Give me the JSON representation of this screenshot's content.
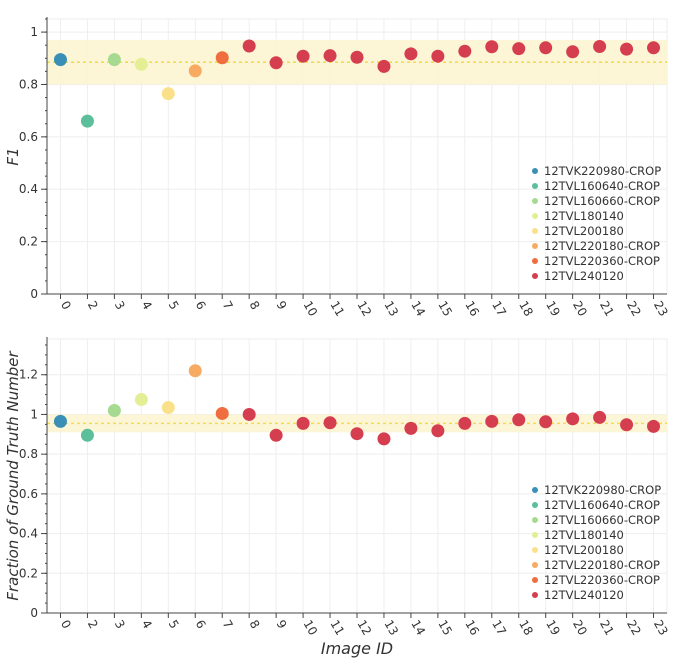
{
  "chart_data": [
    {
      "type": "scatter",
      "panel": "top",
      "xlabel": "",
      "ylabel": "F1",
      "ylim": [
        0,
        1.05
      ],
      "yticks": [
        0,
        0.2,
        0.4,
        0.6,
        0.8,
        1
      ],
      "ytick_labels": [
        "0",
        "0.2",
        "0.4",
        "0.6",
        "0.8",
        "1"
      ],
      "categories": [
        "0",
        "2",
        "3",
        "4",
        "5",
        "6",
        "7",
        "8",
        "9",
        "10",
        "11",
        "12",
        "13",
        "14",
        "15",
        "16",
        "17",
        "18",
        "19",
        "20",
        "21",
        "22",
        "23"
      ],
      "band": {
        "low": 0.8,
        "high": 0.97,
        "color": "#fdf5cf"
      },
      "mean_line": {
        "value": 0.885,
        "color": "#f5dc4a"
      },
      "series": [
        {
          "name": "12TVK220980-CROP",
          "color": "#3a8fb7",
          "x": [
            "0"
          ],
          "values": [
            0.895
          ]
        },
        {
          "name": "12TVL160640-CROP",
          "color": "#5cbf9c",
          "x": [
            "2"
          ],
          "values": [
            0.66
          ]
        },
        {
          "name": "12TVL160660-CROP",
          "color": "#a6da90",
          "x": [
            "3"
          ],
          "values": [
            0.895
          ]
        },
        {
          "name": "12TVL180140",
          "color": "#e4ef95",
          "x": [
            "4"
          ],
          "values": [
            0.877
          ]
        },
        {
          "name": "12TVL200180",
          "color": "#fbe08a",
          "x": [
            "5"
          ],
          "values": [
            0.765
          ]
        },
        {
          "name": "12TVL220180-CROP",
          "color": "#f7ab62",
          "x": [
            "6"
          ],
          "values": [
            0.852
          ]
        },
        {
          "name": "12TVL220360-CROP",
          "color": "#ef6d3e",
          "x": [
            "7"
          ],
          "values": [
            0.902
          ]
        },
        {
          "name": "12TVL240120",
          "color": "#d53e4f",
          "x": [
            "8",
            "9",
            "10",
            "11",
            "12",
            "13",
            "14",
            "15",
            "16",
            "17",
            "18",
            "19",
            "20",
            "21",
            "22",
            "23"
          ],
          "values": [
            0.947,
            0.883,
            0.908,
            0.91,
            0.904,
            0.869,
            0.917,
            0.908,
            0.927,
            0.944,
            0.937,
            0.94,
            0.925,
            0.945,
            0.935,
            0.94
          ]
        }
      ],
      "legend_position": "bottom-right"
    },
    {
      "type": "scatter",
      "panel": "bottom",
      "xlabel": "Image ID",
      "ylabel": "Fraction of Ground Truth Number",
      "ylim": [
        0,
        1.38
      ],
      "yticks": [
        0,
        0.2,
        0.4,
        0.6,
        0.8,
        1,
        1.2
      ],
      "ytick_labels": [
        "0",
        "0.2",
        "0.4",
        "0.6",
        "0.8",
        "1",
        "1.2"
      ],
      "categories": [
        "0",
        "2",
        "3",
        "4",
        "5",
        "6",
        "7",
        "8",
        "9",
        "10",
        "11",
        "12",
        "13",
        "14",
        "15",
        "16",
        "17",
        "18",
        "19",
        "20",
        "21",
        "22",
        "23"
      ],
      "band": {
        "low": 0.91,
        "high": 1.0,
        "color": "#fdf5cf"
      },
      "mean_line": {
        "value": 0.955,
        "color": "#f5dc4a"
      },
      "series": [
        {
          "name": "12TVK220980-CROP",
          "color": "#3a8fb7",
          "x": [
            "0"
          ],
          "values": [
            0.965
          ]
        },
        {
          "name": "12TVL160640-CROP",
          "color": "#5cbf9c",
          "x": [
            "2"
          ],
          "values": [
            0.895
          ]
        },
        {
          "name": "12TVL160660-CROP",
          "color": "#a6da90",
          "x": [
            "3"
          ],
          "values": [
            1.02
          ]
        },
        {
          "name": "12TVL180140",
          "color": "#e4ef95",
          "x": [
            "4"
          ],
          "values": [
            1.075
          ]
        },
        {
          "name": "12TVL200180",
          "color": "#fbe08a",
          "x": [
            "5"
          ],
          "values": [
            1.035
          ]
        },
        {
          "name": "12TVL220180-CROP",
          "color": "#f7ab62",
          "x": [
            "6"
          ],
          "values": [
            1.22
          ]
        },
        {
          "name": "12TVL220360-CROP",
          "color": "#ef6d3e",
          "x": [
            "7"
          ],
          "values": [
            1.005
          ]
        },
        {
          "name": "12TVL240120",
          "color": "#d53e4f",
          "x": [
            "8",
            "9",
            "10",
            "11",
            "12",
            "13",
            "14",
            "15",
            "16",
            "17",
            "18",
            "19",
            "20",
            "21",
            "22",
            "23"
          ],
          "values": [
            1.0,
            0.895,
            0.955,
            0.958,
            0.903,
            0.877,
            0.93,
            0.918,
            0.955,
            0.965,
            0.973,
            0.963,
            0.978,
            0.985,
            0.948,
            0.94
          ]
        }
      ],
      "legend_position": "bottom-right"
    }
  ]
}
